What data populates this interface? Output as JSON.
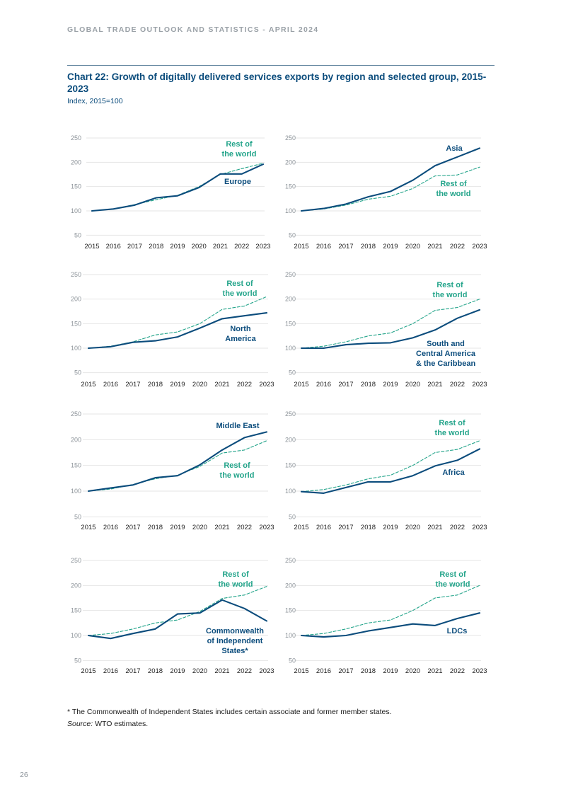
{
  "header": {
    "text": "GLOBAL TRADE OUTLOOK AND STATISTICS - APRIL 2024"
  },
  "title": "Chart 22: Growth of digitally delivered services exports by region and selected group, 2015-2023",
  "subtitle": "Index, 2015=100",
  "footnote": "* The Commonwealth of Independent States includes certain associate and former member states.",
  "source_label": "Source:",
  "source_text": " WTO estimates.",
  "page_number": "26",
  "colors": {
    "region": "#0b4c7c",
    "rest": "#23a48a",
    "grid": "#e6e6e6",
    "title": "#0b4c7c"
  },
  "chart_data": [
    {
      "type": "line",
      "title": "Europe",
      "years": [
        "2015",
        "2016",
        "2017",
        "2018",
        "2019",
        "2020",
        "2021",
        "2022",
        "2023"
      ],
      "y_ticks": [
        50,
        100,
        150,
        200,
        250
      ],
      "ylim": [
        50,
        250
      ],
      "series": [
        {
          "name": "Europe",
          "style": "solid",
          "values": [
            100,
            104,
            112,
            127,
            131,
            148,
            176,
            176,
            196
          ]
        },
        {
          "name": "Rest of the world",
          "style": "dashed",
          "values": [
            100,
            104,
            113,
            123,
            132,
            150,
            175,
            187,
            198
          ]
        }
      ]
    },
    {
      "type": "line",
      "title": "Asia",
      "years": [
        "2015",
        "2016",
        "2017",
        "2018",
        "2019",
        "2020",
        "2021",
        "2022",
        "2023"
      ],
      "y_ticks": [
        50,
        100,
        150,
        200,
        250
      ],
      "ylim": [
        50,
        250
      ],
      "series": [
        {
          "name": "Asia",
          "style": "solid",
          "values": [
            100,
            105,
            114,
            129,
            140,
            163,
            193,
            211,
            229
          ]
        },
        {
          "name": "Rest of the world",
          "style": "dashed",
          "values": [
            100,
            104,
            112,
            124,
            130,
            146,
            172,
            174,
            190
          ]
        }
      ]
    },
    {
      "type": "line",
      "title": "North America",
      "years": [
        "2015",
        "2016",
        "2017",
        "2018",
        "2019",
        "2020",
        "2021",
        "2022",
        "2023"
      ],
      "y_ticks": [
        50,
        100,
        150,
        200,
        250
      ],
      "ylim": [
        50,
        250
      ],
      "series": [
        {
          "name": "North America",
          "style": "solid",
          "values": [
            100,
            103,
            112,
            115,
            123,
            141,
            160,
            166,
            172
          ]
        },
        {
          "name": "Rest of the world",
          "style": "dashed",
          "values": [
            100,
            104,
            113,
            127,
            133,
            150,
            179,
            186,
            205
          ]
        }
      ]
    },
    {
      "type": "line",
      "title": "South and Central America & the Caribbean",
      "years": [
        "2015",
        "2016",
        "2017",
        "2018",
        "2019",
        "2020",
        "2021",
        "2022",
        "2023"
      ],
      "y_ticks": [
        50,
        100,
        150,
        200,
        250
      ],
      "ylim": [
        50,
        250
      ],
      "series": [
        {
          "name": "South and Central America & the Caribbean",
          "style": "solid",
          "values": [
            100,
            100,
            107,
            110,
            111,
            121,
            137,
            161,
            178
          ]
        },
        {
          "name": "Rest of the world",
          "style": "dashed",
          "values": [
            100,
            104,
            113,
            125,
            131,
            150,
            177,
            183,
            200
          ]
        }
      ]
    },
    {
      "type": "line",
      "title": "Middle East",
      "years": [
        "2015",
        "2016",
        "2017",
        "2018",
        "2019",
        "2020",
        "2021",
        "2022",
        "2023"
      ],
      "y_ticks": [
        50,
        100,
        150,
        200,
        250
      ],
      "ylim": [
        50,
        250
      ],
      "series": [
        {
          "name": "Middle East",
          "style": "solid",
          "values": [
            100,
            106,
            112,
            126,
            130,
            151,
            180,
            204,
            215
          ]
        },
        {
          "name": "Rest of the world",
          "style": "dashed",
          "values": [
            100,
            104,
            113,
            124,
            131,
            148,
            174,
            180,
            198
          ]
        }
      ]
    },
    {
      "type": "line",
      "title": "Africa",
      "years": [
        "2015",
        "2016",
        "2017",
        "2018",
        "2019",
        "2020",
        "2021",
        "2022",
        "2023"
      ],
      "y_ticks": [
        50,
        100,
        150,
        200,
        250
      ],
      "ylim": [
        50,
        250
      ],
      "series": [
        {
          "name": "Africa",
          "style": "solid",
          "values": [
            99,
            96,
            107,
            118,
            118,
            130,
            149,
            160,
            182
          ]
        },
        {
          "name": "Rest of the world",
          "style": "dashed",
          "values": [
            99,
            103,
            112,
            124,
            131,
            150,
            175,
            181,
            198
          ]
        }
      ]
    },
    {
      "type": "line",
      "title": "Commonwealth of Independent States*",
      "years": [
        "2015",
        "2016",
        "2017",
        "2018",
        "2019",
        "2020",
        "2021",
        "2022",
        "2023"
      ],
      "y_ticks": [
        50,
        100,
        150,
        200,
        250
      ],
      "ylim": [
        50,
        250
      ],
      "series": [
        {
          "name": "Commonwealth of Independent States*",
          "style": "solid",
          "values": [
            100,
            94,
            104,
            113,
            143,
            145,
            171,
            154,
            129
          ]
        },
        {
          "name": "Rest of the world",
          "style": "dashed",
          "values": [
            100,
            104,
            113,
            125,
            131,
            148,
            174,
            181,
            198
          ]
        }
      ]
    },
    {
      "type": "line",
      "title": "LDCs",
      "years": [
        "2015",
        "2016",
        "2017",
        "2018",
        "2019",
        "2020",
        "2021",
        "2022",
        "2023"
      ],
      "y_ticks": [
        50,
        100,
        150,
        200,
        250
      ],
      "ylim": [
        50,
        250
      ],
      "series": [
        {
          "name": "LDCs",
          "style": "solid",
          "values": [
            100,
            97,
            100,
            109,
            116,
            123,
            120,
            134,
            145
          ]
        },
        {
          "name": "Rest of the world",
          "style": "dashed",
          "values": [
            100,
            104,
            113,
            125,
            131,
            150,
            175,
            181,
            200
          ]
        }
      ]
    }
  ],
  "panel_labels": [
    {
      "region_lines": [
        "Europe"
      ],
      "rest_lines": [
        "Rest of",
        "the world"
      ]
    },
    {
      "region_lines": [
        "Asia"
      ],
      "rest_lines": [
        "Rest of",
        "the world"
      ]
    },
    {
      "region_lines": [
        "North",
        "America"
      ],
      "rest_lines": [
        "Rest of",
        "the world"
      ]
    },
    {
      "region_lines": [
        "South and",
        "Central America",
        "& the Caribbean"
      ],
      "rest_lines": [
        "Rest of",
        "the world"
      ]
    },
    {
      "region_lines": [
        "Middle East"
      ],
      "rest_lines": [
        "Rest of",
        "the world"
      ]
    },
    {
      "region_lines": [
        "Africa"
      ],
      "rest_lines": [
        "Rest of",
        "the world"
      ]
    },
    {
      "region_lines": [
        "Commonwealth",
        "of Independent",
        "States*"
      ],
      "rest_lines": [
        "Rest of",
        "the world"
      ]
    },
    {
      "region_lines": [
        "LDCs"
      ],
      "rest_lines": [
        "Rest of",
        "the world"
      ]
    }
  ]
}
